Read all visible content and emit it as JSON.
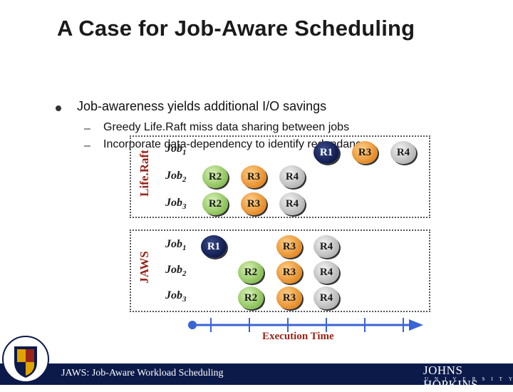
{
  "slide": {
    "title": "A Case for Job-Aware Scheduling",
    "bullet": "Job-awareness yields additional I/O savings",
    "subbullets": [
      "Greedy Life.Raft miss data sharing between jobs",
      "Incorporate data-dependency to identify redundancy"
    ]
  },
  "panels": {
    "liferaft": {
      "label": "Life.Raft",
      "rows": [
        {
          "job": "Job",
          "sub": "1",
          "circles": [
            "R1",
            "R3",
            "R4"
          ]
        },
        {
          "job": "Job",
          "sub": "2",
          "circles": [
            "R2",
            "R3",
            "R4"
          ]
        },
        {
          "job": "Job",
          "sub": "3",
          "circles": [
            "R2",
            "R3",
            "R4"
          ]
        }
      ]
    },
    "jaws": {
      "label": "JAWS",
      "rows": [
        {
          "job": "Job",
          "sub": "1",
          "circles": [
            "R1",
            "R3",
            "R4"
          ]
        },
        {
          "job": "Job",
          "sub": "2",
          "circles": [
            "R2",
            "R3",
            "R4"
          ]
        },
        {
          "job": "Job",
          "sub": "3",
          "circles": [
            "R2",
            "R3",
            "R4"
          ]
        }
      ]
    }
  },
  "axis_label": "Execution Time",
  "footer": {
    "text": "JAWS: Job-Aware Workload Scheduling",
    "logo": "JOHNS HOPKINS",
    "logo_sub": "UNIVERSITY"
  },
  "colors": {
    "navy": "#0e1a4c",
    "accent_red": "#9b2418",
    "green": "#88bf55",
    "orange": "#e48a26",
    "grey": "#b5b5b5",
    "axis_blue": "#3a63d6"
  }
}
